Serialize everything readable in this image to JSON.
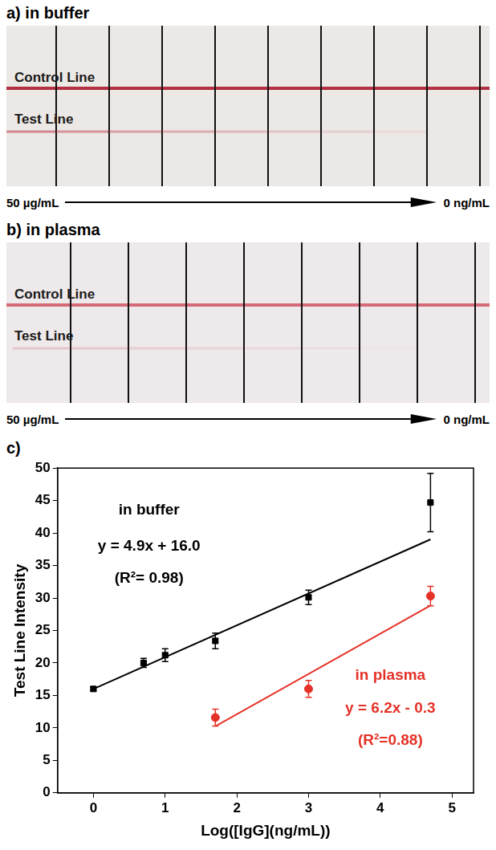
{
  "panel_a": {
    "title": "a) in buffer",
    "control_line": "Control Line",
    "test_line": "Test Line",
    "from": "50 µg/mL",
    "to": "0 ng/mL"
  },
  "panel_b": {
    "title": "b) in plasma",
    "control_line": "Control Line",
    "test_line": "Test Line",
    "from": "50 µg/mL",
    "to": "0 ng/mL"
  },
  "chart_data": {
    "panel_label": "c)",
    "type": "scatter",
    "x_label": "Log([IgG](ng/mL))",
    "y_label": "Test Line Intensity",
    "xlim": [
      -0.5,
      5.3
    ],
    "xticks": [
      0,
      1,
      2,
      3,
      4,
      5
    ],
    "ylim": [
      0,
      50
    ],
    "yticks": [
      0,
      5,
      10,
      15,
      20,
      25,
      30,
      35,
      40,
      45,
      50
    ],
    "grid": false,
    "series": [
      {
        "name": "in buffer",
        "color": "#000000",
        "marker": "square",
        "x": [
          0,
          0.7,
          1.0,
          1.7,
          3.0,
          4.7
        ],
        "values": [
          16.0,
          20.0,
          21.2,
          23.4,
          30.1,
          44.7
        ],
        "errors": [
          0.3,
          0.7,
          1.0,
          1.2,
          1.1,
          4.5
        ],
        "fit": {
          "slope": 4.9,
          "intercept": 16.0,
          "equation": "y = 4.9x + 16.0",
          "r2": "(R²= 0.98)"
        }
      },
      {
        "name": "in plasma",
        "color": "#e53228",
        "marker": "circle",
        "x": [
          1.7,
          3.0,
          4.7
        ],
        "values": [
          11.6,
          16.0,
          30.3
        ],
        "errors": [
          1.3,
          1.3,
          1.5
        ],
        "fit": {
          "slope": 6.2,
          "intercept": -0.3,
          "equation": "y = 6.2x - 0.3",
          "r2": "(R²=0.88)"
        }
      }
    ]
  }
}
